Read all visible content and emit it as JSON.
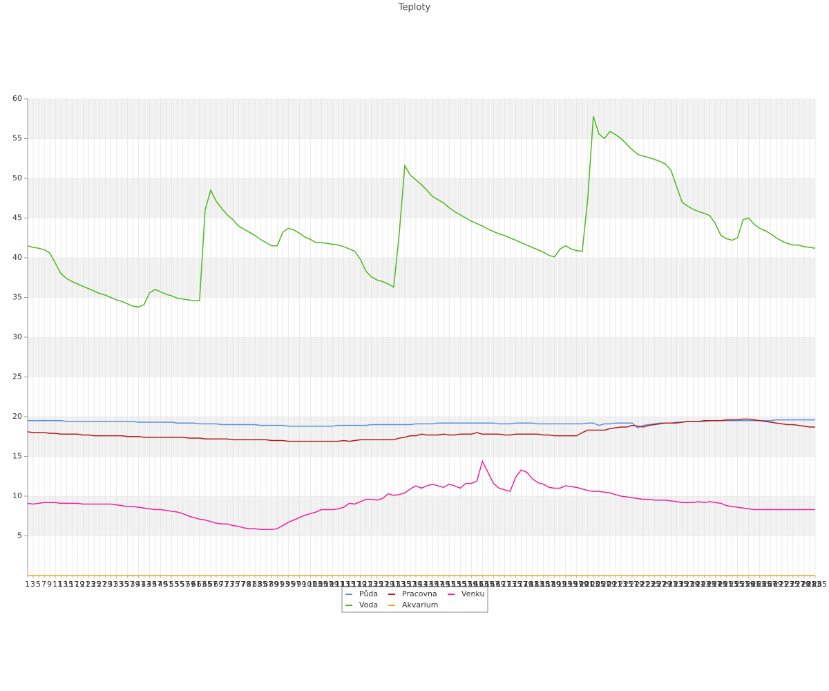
{
  "chart_data": {
    "type": "line",
    "title": "Teploty",
    "categories": [
      1,
      3,
      5,
      7,
      9,
      11,
      13,
      15,
      17,
      19,
      21,
      23,
      25,
      27,
      29,
      31,
      33,
      35,
      37,
      39,
      41,
      43,
      45,
      47,
      49,
      51,
      53,
      55,
      57,
      59,
      61,
      63,
      65,
      67,
      69,
      71,
      73,
      75,
      77,
      79,
      81,
      83,
      85,
      87,
      89,
      91,
      93,
      95,
      97,
      99,
      101,
      103,
      105,
      107,
      109,
      111,
      113,
      115,
      117,
      119,
      121,
      123,
      125,
      127,
      129,
      131,
      133,
      135,
      137,
      139,
      141,
      143,
      145,
      147,
      149,
      151,
      153,
      155,
      157,
      159,
      161,
      163,
      165,
      167,
      169,
      171,
      173,
      175,
      177,
      179,
      181,
      183,
      185,
      187,
      189,
      191,
      193,
      195,
      197,
      199,
      201,
      203,
      205,
      207,
      209,
      211,
      213,
      215,
      217,
      219,
      221,
      223,
      225,
      227,
      229,
      231,
      233,
      235,
      237,
      239,
      241,
      243,
      245,
      247,
      249,
      251,
      253,
      255,
      257,
      259,
      261,
      263,
      265,
      267,
      269,
      271,
      273,
      275,
      277,
      279,
      281,
      283,
      285
    ],
    "ylim": [
      0,
      60
    ],
    "yticks": [
      5,
      10,
      15,
      20,
      25,
      30,
      35,
      40,
      45,
      50,
      55,
      60
    ],
    "grid": true,
    "series": [
      {
        "name": "Půda",
        "color": "#5b8ee0",
        "values": [
          19.5,
          19.5,
          19.5,
          19.5,
          19.5,
          19.5,
          19.5,
          19.4,
          19.4,
          19.4,
          19.4,
          19.4,
          19.4,
          19.4,
          19.4,
          19.4,
          19.4,
          19.4,
          19.4,
          19.4,
          19.3,
          19.3,
          19.3,
          19.3,
          19.3,
          19.3,
          19.3,
          19.2,
          19.2,
          19.2,
          19.2,
          19.1,
          19.1,
          19.1,
          19.1,
          19.0,
          19.0,
          19.0,
          19.0,
          19.0,
          19.0,
          19.0,
          18.9,
          18.9,
          18.9,
          18.9,
          18.9,
          18.8,
          18.8,
          18.8,
          18.8,
          18.8,
          18.8,
          18.8,
          18.8,
          18.8,
          18.9,
          18.9,
          18.9,
          18.9,
          18.9,
          18.9,
          19.0,
          19.0,
          19.0,
          19.0,
          19.0,
          19.0,
          19.0,
          19.0,
          19.1,
          19.1,
          19.1,
          19.1,
          19.2,
          19.2,
          19.2,
          19.2,
          19.2,
          19.2,
          19.2,
          19.2,
          19.2,
          19.2,
          19.2,
          19.1,
          19.1,
          19.1,
          19.2,
          19.2,
          19.2,
          19.2,
          19.1,
          19.1,
          19.1,
          19.1,
          19.1,
          19.1,
          19.1,
          19.1,
          19.1,
          19.2,
          19.2,
          18.9,
          19.1,
          19.1,
          19.2,
          19.2,
          19.2,
          19.2,
          18.6,
          18.9,
          19.0,
          19.1,
          19.2,
          19.2,
          19.2,
          19.3,
          19.3,
          19.4,
          19.4,
          19.4,
          19.4,
          19.5,
          19.5,
          19.5,
          19.5,
          19.5,
          19.5,
          19.5,
          19.5,
          19.5,
          19.5,
          19.5,
          19.5,
          19.6,
          19.6,
          19.6,
          19.6,
          19.6,
          19.6,
          19.6,
          19.6
        ]
      },
      {
        "name": "Voda",
        "color": "#4cb81c",
        "values": [
          41.5,
          41.3,
          41.2,
          41.0,
          40.6,
          39.3,
          38.0,
          37.4,
          37.0,
          36.7,
          36.4,
          36.1,
          35.8,
          35.5,
          35.3,
          35.0,
          34.7,
          34.5,
          34.2,
          33.9,
          33.8,
          34.1,
          35.6,
          36.0,
          35.7,
          35.4,
          35.2,
          34.9,
          34.8,
          34.7,
          34.6,
          34.6,
          46,
          48.5,
          47.1,
          46.2,
          45.4,
          44.8,
          44.0,
          43.6,
          43.2,
          42.8,
          42.3,
          41.9,
          41.5,
          41.5,
          43.2,
          43.7,
          43.5,
          43.1,
          42.6,
          42.3,
          41.9,
          41.9,
          41.8,
          41.7,
          41.6,
          41.4,
          41.1,
          40.8,
          39.8,
          38.3,
          37.6,
          37.2,
          37.0,
          36.7,
          36.3,
          43,
          51.6,
          50.4,
          49.8,
          49.2,
          48.5,
          47.7,
          47.3,
          46.9,
          46.3,
          45.8,
          45.4,
          45.0,
          44.6,
          44.3,
          44.0,
          43.6,
          43.3,
          43.0,
          42.8,
          42.5,
          42.2,
          41.9,
          41.6,
          41.3,
          41.0,
          40.7,
          40.3,
          40.1,
          41.1,
          41.5,
          41.1,
          40.9,
          40.8,
          47.5,
          57.8,
          55.6,
          55.0,
          55.9,
          55.5,
          55.0,
          54.3,
          53.6,
          53.0,
          52.8,
          52.6,
          52.4,
          52.1,
          51.8,
          51.0,
          49.0,
          47.0,
          46.5,
          46.1,
          45.8,
          45.6,
          45.3,
          44.3,
          42.8,
          42.4,
          42.2,
          42.5,
          44.8,
          45.0,
          44.2,
          43.7,
          43.4,
          43.0,
          42.5,
          42.1,
          41.8,
          41.6,
          41.6,
          41.4,
          41.3,
          41.2
        ]
      },
      {
        "name": "Pracovna",
        "color": "#b01c1c",
        "values": [
          18.1,
          18.0,
          18.0,
          18.0,
          17.9,
          17.9,
          17.8,
          17.8,
          17.8,
          17.8,
          17.7,
          17.7,
          17.6,
          17.6,
          17.6,
          17.6,
          17.6,
          17.6,
          17.5,
          17.5,
          17.5,
          17.4,
          17.4,
          17.4,
          17.4,
          17.4,
          17.4,
          17.4,
          17.4,
          17.3,
          17.3,
          17.3,
          17.2,
          17.2,
          17.2,
          17.2,
          17.2,
          17.1,
          17.1,
          17.1,
          17.1,
          17.1,
          17.1,
          17.1,
          17.0,
          17.0,
          17.0,
          16.9,
          16.9,
          16.9,
          16.9,
          16.9,
          16.9,
          16.9,
          16.9,
          16.9,
          16.9,
          17.0,
          16.9,
          17.0,
          17.1,
          17.1,
          17.1,
          17.1,
          17.1,
          17.1,
          17.1,
          17.3,
          17.4,
          17.6,
          17.6,
          17.8,
          17.7,
          17.7,
          17.7,
          17.8,
          17.7,
          17.7,
          17.8,
          17.8,
          17.8,
          18.0,
          17.8,
          17.8,
          17.8,
          17.8,
          17.7,
          17.7,
          17.8,
          17.8,
          17.8,
          17.8,
          17.8,
          17.7,
          17.7,
          17.6,
          17.6,
          17.6,
          17.6,
          17.6,
          18.0,
          18.3,
          18.3,
          18.3,
          18.3,
          18.5,
          18.6,
          18.7,
          18.7,
          18.9,
          18.8,
          18.7,
          18.9,
          19.0,
          19.1,
          19.2,
          19.2,
          19.2,
          19.3,
          19.4,
          19.4,
          19.4,
          19.5,
          19.5,
          19.5,
          19.5,
          19.6,
          19.6,
          19.6,
          19.7,
          19.7,
          19.6,
          19.5,
          19.4,
          19.3,
          19.2,
          19.1,
          19.0,
          19.0,
          18.9,
          18.8,
          18.7,
          18.7
        ]
      },
      {
        "name": "Akvarium",
        "color": "#f0a020",
        "values": [
          0,
          0,
          0,
          0,
          0,
          0,
          0,
          0,
          0,
          0,
          0,
          0,
          0,
          0,
          0,
          0,
          0,
          0,
          0,
          0,
          0,
          0,
          0,
          0,
          0,
          0,
          0,
          0,
          0,
          0,
          0,
          0,
          0,
          0,
          0,
          0,
          0,
          0,
          0,
          0,
          0,
          0,
          0,
          0,
          0,
          0,
          0,
          0,
          0,
          0,
          0,
          0,
          0,
          0,
          0,
          0,
          0,
          0,
          0,
          0,
          0,
          0,
          0,
          0,
          0,
          0,
          0,
          0,
          0,
          0,
          0,
          0,
          0,
          0,
          0,
          0,
          0,
          0,
          0,
          0,
          0,
          0,
          0,
          0,
          0,
          0,
          0,
          0,
          0,
          0,
          0,
          0,
          0,
          0,
          0,
          0,
          0,
          0,
          0,
          0,
          0,
          0,
          0,
          0,
          0,
          0,
          0,
          0,
          0,
          0,
          0,
          0,
          0,
          0,
          0,
          0,
          0,
          0,
          0,
          0,
          0,
          0,
          0,
          0,
          0,
          0,
          0,
          0,
          0,
          0,
          0,
          0,
          0,
          0,
          0,
          0,
          0,
          0,
          0,
          0,
          0,
          0,
          0
        ]
      },
      {
        "name": "Venku",
        "color": "#f0209a",
        "values": [
          9.1,
          9.0,
          9.1,
          9.2,
          9.2,
          9.2,
          9.1,
          9.1,
          9.1,
          9.1,
          9.0,
          9.0,
          9.0,
          9.0,
          9.0,
          9.0,
          8.9,
          8.8,
          8.7,
          8.7,
          8.6,
          8.5,
          8.4,
          8.3,
          8.3,
          8.2,
          8.1,
          8.0,
          7.8,
          7.5,
          7.3,
          7.1,
          7.0,
          6.8,
          6.6,
          6.5,
          6.5,
          6.3,
          6.2,
          6.0,
          5.9,
          5.9,
          5.8,
          5.8,
          5.8,
          5.9,
          6.3,
          6.7,
          7.0,
          7.3,
          7.6,
          7.8,
          8.0,
          8.3,
          8.3,
          8.3,
          8.4,
          8.6,
          9.1,
          9.0,
          9.3,
          9.6,
          9.6,
          9.5,
          9.7,
          10.3,
          10.1,
          10.2,
          10.4,
          10.9,
          11.3,
          11.0,
          11.3,
          11.5,
          11.3,
          11.1,
          11.5,
          11.3,
          11.0,
          11.6,
          11.6,
          11.9,
          14.4,
          13.0,
          11.6,
          11.0,
          10.8,
          10.6,
          12.4,
          13.3,
          13.0,
          12.2,
          11.7,
          11.5,
          11.1,
          11.0,
          11.0,
          11.3,
          11.2,
          11.1,
          10.9,
          10.7,
          10.6,
          10.6,
          10.5,
          10.4,
          10.2,
          10.0,
          9.9,
          9.8,
          9.7,
          9.6,
          9.6,
          9.5,
          9.5,
          9.5,
          9.4,
          9.3,
          9.2,
          9.2,
          9.2,
          9.3,
          9.2,
          9.3,
          9.2,
          9.1,
          8.8,
          8.7,
          8.6,
          8.5,
          8.4,
          8.3,
          8.3,
          8.3,
          8.3,
          8.3,
          8.3,
          8.3,
          8.3,
          8.3,
          8.3,
          8.3,
          8.3
        ]
      }
    ]
  }
}
